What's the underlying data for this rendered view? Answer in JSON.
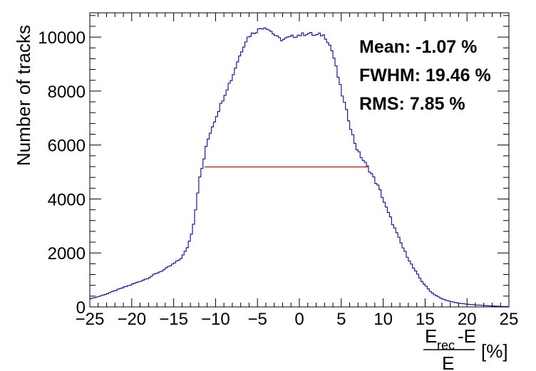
{
  "chart_data": {
    "type": "histogram",
    "xlabel": {
      "numerator": "E",
      "numerator_sub": "rec",
      "numerator_suffix": "-E",
      "denominator": "E",
      "unit": "[%]"
    },
    "ylabel": "Number of tracks",
    "xlim": [
      -25,
      25
    ],
    "ylim": [
      0,
      10900
    ],
    "xticks": [
      -25,
      -20,
      -15,
      -10,
      -5,
      0,
      5,
      10,
      15,
      20,
      25
    ],
    "xtick_labels": [
      "−25",
      "−20",
      "−15",
      "−10",
      "−5",
      "0",
      "5",
      "10",
      "15",
      "20",
      "25"
    ],
    "yticks": [
      0,
      2000,
      4000,
      6000,
      8000,
      10000
    ],
    "ytick_labels": [
      "0",
      "2000",
      "4000",
      "6000",
      "8000",
      "10000"
    ],
    "bin_width": 0.25,
    "profile_x": [
      -25,
      -24,
      -23,
      -22,
      -21,
      -20,
      -19,
      -18,
      -17,
      -16,
      -15,
      -14.5,
      -14,
      -13.5,
      -13,
      -12.5,
      -12,
      -11.5,
      -11,
      -10.5,
      -10,
      -9.5,
      -9,
      -8.5,
      -8,
      -7.5,
      -7,
      -6.5,
      -6,
      -5.5,
      -5,
      -4.5,
      -4,
      -3.5,
      -3,
      -2.5,
      -2,
      -1.5,
      -1,
      -0.5,
      0,
      0.5,
      1,
      1.5,
      2,
      2.5,
      3,
      3.5,
      4,
      4.5,
      5,
      5.5,
      6,
      6.5,
      7,
      7.5,
      8,
      8.5,
      9,
      9.5,
      10,
      10.5,
      11,
      11.5,
      12,
      12.5,
      13,
      13.5,
      14,
      14.5,
      15,
      15.5,
      16,
      17,
      18,
      19,
      20,
      21,
      22,
      23,
      24,
      25
    ],
    "profile_y": [
      300,
      380,
      480,
      600,
      720,
      830,
      950,
      1080,
      1250,
      1400,
      1600,
      1700,
      1850,
      2100,
      2550,
      3300,
      4600,
      5300,
      6100,
      6600,
      7000,
      7400,
      7800,
      8200,
      8500,
      9000,
      9400,
      9800,
      10050,
      10150,
      10250,
      10350,
      10380,
      10250,
      10100,
      9950,
      9900,
      9950,
      10000,
      10050,
      10080,
      10100,
      10150,
      10100,
      10050,
      10100,
      10050,
      9800,
      9400,
      8700,
      8000,
      7400,
      6800,
      6200,
      5750,
      5500,
      5250,
      5000,
      4700,
      4400,
      4000,
      3550,
      3200,
      2800,
      2450,
      2100,
      1800,
      1500,
      1250,
      1000,
      800,
      620,
      480,
      300,
      200,
      140,
      100,
      75,
      55,
      35,
      20,
      10
    ],
    "fwhm_line": {
      "x_start": -11.3,
      "x_end": 8.16,
      "y": 5190
    },
    "stats": [
      {
        "label": "Mean:",
        "value": "-1.07 %"
      },
      {
        "label": "FWHM:",
        "value": "19.46 %"
      },
      {
        "label": "RMS:",
        "value": "7.85 %"
      }
    ],
    "colors": {
      "histogram": "#1a1aa6",
      "fwhm_line": "#ff0000",
      "axis": "#000000"
    },
    "grid": false,
    "legend": "none"
  }
}
